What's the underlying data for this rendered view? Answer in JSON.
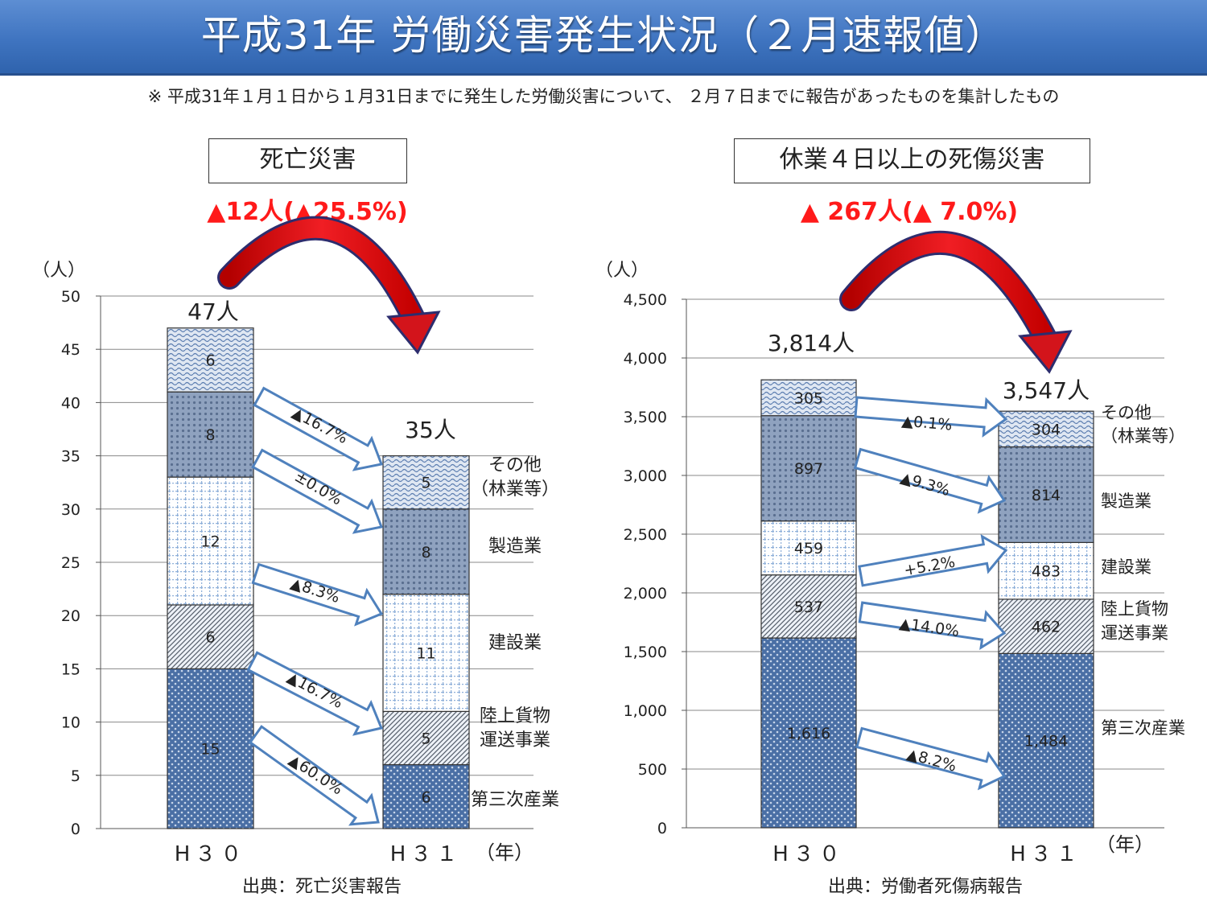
{
  "header": {
    "title": "平成31年 労働災害発生状況（２月速報値）",
    "note": "※ 平成31年１月１日から１月31日までに発生した労働災害について、 ２月７日までに報告があったものを集計したもの"
  },
  "left": {
    "box_title": "死亡災害",
    "change": "▲12人(▲25.5%)",
    "unit": "（人）",
    "source": "出典：死亡災害報告"
  },
  "right": {
    "box_title": "休業４日以上の死傷災害",
    "change": "▲ 267人(▲ 7.0%)",
    "unit": "（人）",
    "source": "出典：労働者死傷病報告"
  },
  "colors": {
    "title_bar": "#3f74c0",
    "change_text": "#ff1a1a",
    "arrow_outline": "#4f81bd",
    "curved_arrow": "#e8141c",
    "bar_fill": "#4a6fa5"
  },
  "chart_data": [
    {
      "type": "bar",
      "stacked": true,
      "categories": [
        "H３０",
        "H３１"
      ],
      "x_unit_label": "（年）",
      "ylim": [
        0,
        50
      ],
      "yticks": [
        0,
        5,
        10,
        15,
        20,
        25,
        30,
        35,
        40,
        45,
        50
      ],
      "grid": true,
      "totals": [
        "47人",
        "35人"
      ],
      "series": [
        {
          "name": "第三次産業",
          "values": [
            15,
            6
          ],
          "labels": [
            "15",
            "6"
          ],
          "change": "▲60.0%"
        },
        {
          "name": "陸上貨物運送事業",
          "lines": [
            "陸上貨物",
            "運送事業"
          ],
          "values": [
            6,
            5
          ],
          "labels": [
            "6",
            "5"
          ],
          "change": "▲16.7%"
        },
        {
          "name": "建設業",
          "values": [
            12,
            11
          ],
          "labels": [
            "12",
            "11"
          ],
          "change": "▲8.3%"
        },
        {
          "name": "製造業",
          "values": [
            8,
            8
          ],
          "labels": [
            "8",
            "8"
          ],
          "change": "±0.0%"
        },
        {
          "name": "その他（林業等）",
          "lines": [
            "その他",
            "（林業等）"
          ],
          "values": [
            6,
            5
          ],
          "labels": [
            "6",
            "5"
          ],
          "change": "▲16.7%"
        }
      ]
    },
    {
      "type": "bar",
      "stacked": true,
      "categories": [
        "H３０",
        "H３１"
      ],
      "x_unit_label": "（年）",
      "ylim": [
        0,
        4500
      ],
      "yticks": [
        "0",
        "500",
        "1,000",
        "1,500",
        "2,000",
        "2,500",
        "3,000",
        "3,500",
        "4,000",
        "4,500"
      ],
      "grid": true,
      "totals": [
        "3,814人",
        "3,547人"
      ],
      "series": [
        {
          "name": "第三次産業",
          "values": [
            1616,
            1484
          ],
          "labels": [
            "1,616",
            "1,484"
          ],
          "change": "▲8.2%"
        },
        {
          "name": "陸上貨物運送事業",
          "lines": [
            "陸上貨物",
            "運送事業"
          ],
          "values": [
            537,
            462
          ],
          "labels": [
            "537",
            "462"
          ],
          "change": "▲14.0%"
        },
        {
          "name": "建設業",
          "values": [
            459,
            483
          ],
          "labels": [
            "459",
            "483"
          ],
          "change": "+5.2%"
        },
        {
          "name": "製造業",
          "values": [
            897,
            814
          ],
          "labels": [
            "897",
            "814"
          ],
          "change": "▲9.3%"
        },
        {
          "name": "その他（林業等）",
          "lines": [
            "その他",
            "（林業等）"
          ],
          "values": [
            305,
            304
          ],
          "labels": [
            "305",
            "304"
          ],
          "change": "▲0.1%"
        }
      ]
    }
  ]
}
